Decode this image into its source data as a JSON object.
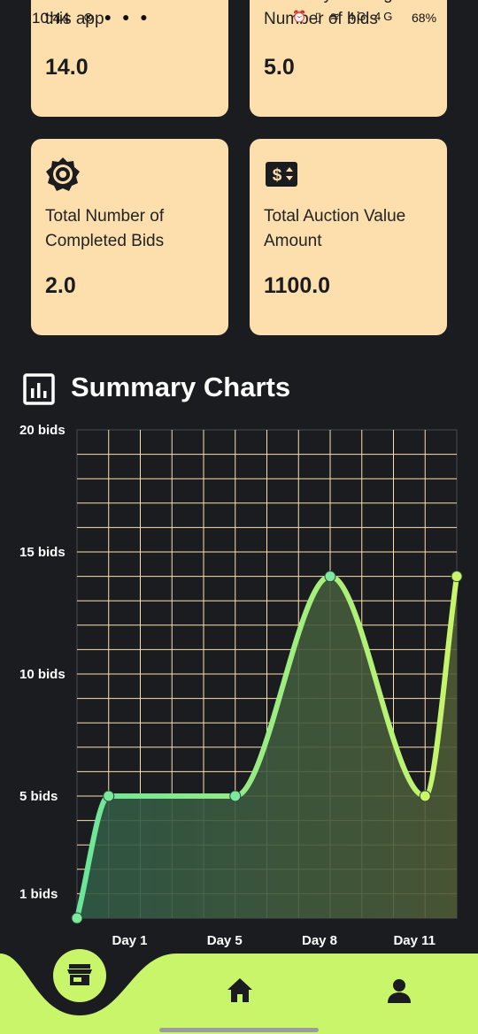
{
  "status_bar": {
    "time": "10:44",
    "battery": "68%"
  },
  "cards": [
    {
      "label": "Total Number of Bids in this app",
      "value": "14.0"
    },
    {
      "label": "Currently running Number of bids",
      "value": "5.0"
    },
    {
      "label": "Total Number of Completed Bids",
      "value": "2.0",
      "icon": "settings-badge-icon"
    },
    {
      "label": "Total Auction Value Amount",
      "value": "1100.0",
      "icon": "dollar-sign-icon"
    }
  ],
  "summary": {
    "title": "Summary Charts",
    "icon": "bar-chart-icon"
  },
  "chart_data": {
    "type": "area",
    "curve": "smooth",
    "y_tick_labels": [
      {
        "value": 1,
        "label": "1 bids"
      },
      {
        "value": 5,
        "label": "5 bids"
      },
      {
        "value": 10,
        "label": "10 bids"
      },
      {
        "value": 15,
        "label": "15 bids"
      },
      {
        "value": 20,
        "label": "20 bids"
      }
    ],
    "ylim": [
      0,
      20
    ],
    "xlim": [
      0,
      12
    ],
    "x_tick_labels": [
      {
        "x": 2,
        "label": "Day 1"
      },
      {
        "x": 5,
        "label": "Day 5"
      },
      {
        "x": 8,
        "label": "Day 8"
      },
      {
        "x": 11,
        "label": "Day 11"
      }
    ],
    "points": [
      {
        "x": 0,
        "y": 0
      },
      {
        "x": 1,
        "y": 5
      },
      {
        "x": 5,
        "y": 5
      },
      {
        "x": 8,
        "y": 14
      },
      {
        "x": 11,
        "y": 5
      },
      {
        "x": 12,
        "y": 14
      }
    ],
    "grid": true,
    "colors": {
      "grid": "#fddfae",
      "line_start": "#6be59a",
      "line_end": "#c8f56a"
    }
  },
  "bottom_nav": {
    "items": [
      {
        "name": "store",
        "icon": "storefront-icon",
        "active": true
      },
      {
        "name": "home",
        "icon": "home-icon",
        "active": false
      },
      {
        "name": "profile",
        "icon": "person-icon",
        "active": false
      }
    ],
    "accent": "#c8f56a"
  }
}
